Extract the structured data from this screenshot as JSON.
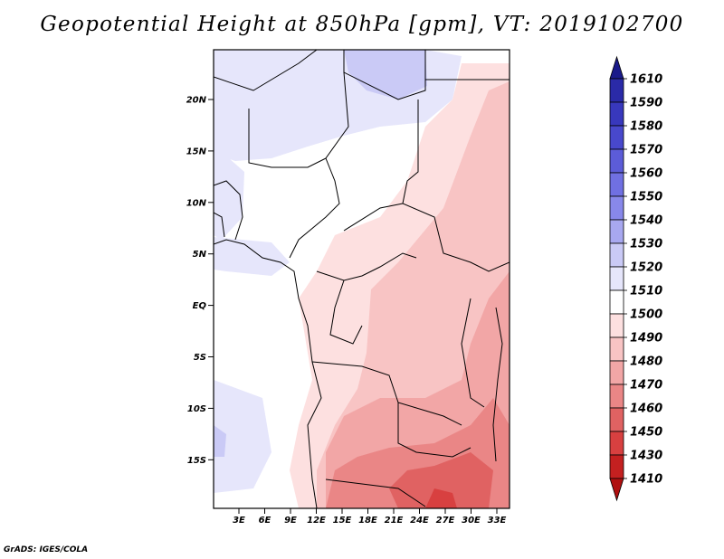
{
  "title": "Geopotential Height at 850hPa [gpm], VT: 2019102700",
  "credit": "GrADS: IGES/COLA",
  "map": {
    "lat_labels": [
      "20N",
      "15N",
      "10N",
      "5N",
      "EQ",
      "5S",
      "10S",
      "15S"
    ],
    "lon_labels": [
      "3E",
      "6E",
      "9E",
      "12E",
      "15E",
      "18E",
      "21E",
      "24E",
      "27E",
      "30E",
      "33E"
    ]
  },
  "colorbar": {
    "levels": [
      "1610",
      "1590",
      "1580",
      "1570",
      "1560",
      "1550",
      "1540",
      "1530",
      "1520",
      "1510",
      "1500",
      "1490",
      "1480",
      "1470",
      "1460",
      "1450",
      "1430",
      "1410"
    ],
    "colors": [
      "#1a1a8a",
      "#2a2aa8",
      "#3838bd",
      "#4848cc",
      "#5c5cd8",
      "#7070e2",
      "#8888ea",
      "#a8a8f0",
      "#cacaf6",
      "#e6e6fb",
      "#ffffff",
      "#fde0e0",
      "#f8c4c4",
      "#f2a6a6",
      "#ea8686",
      "#e06262",
      "#d84040",
      "#c42020",
      "#b01010"
    ]
  }
}
